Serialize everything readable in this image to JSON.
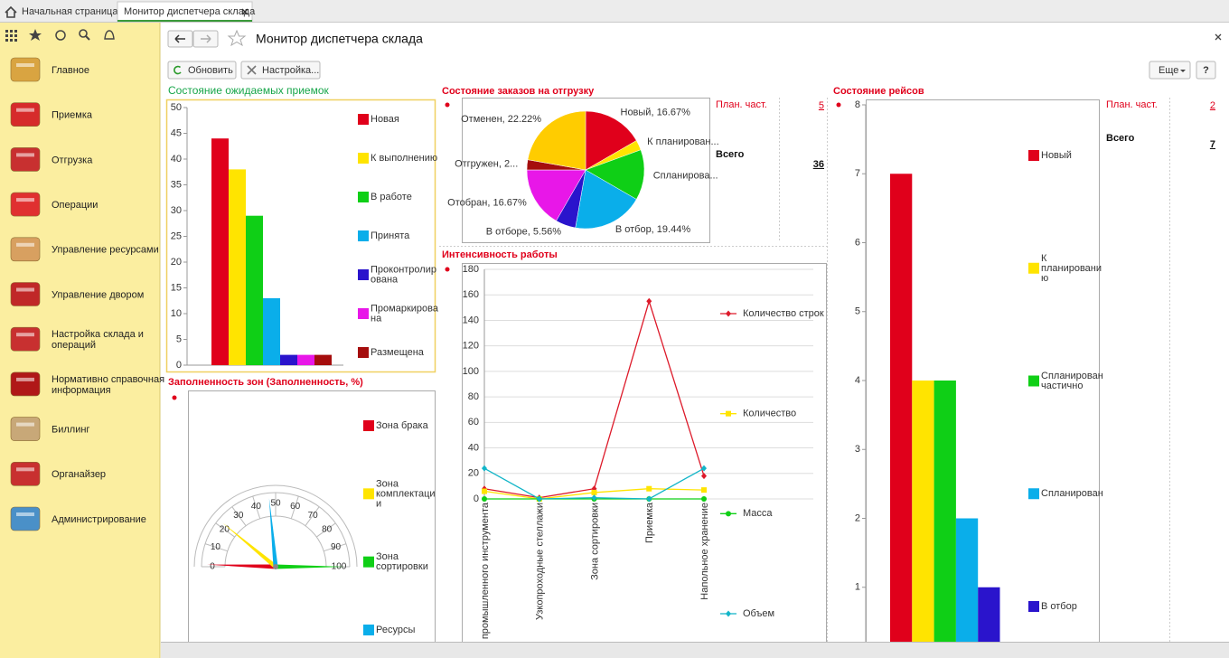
{
  "tabs": [
    "Начальная страница",
    "Монитор диспетчера склада"
  ],
  "nav": [
    "Главное",
    "Приемка",
    "Отгрузка",
    "Операции",
    "Управление ресурсами",
    "Управление двором",
    "Настройка склада и операций",
    "Нормативно справочная информация",
    "Биллинг",
    "Органайзер",
    "Администрирование"
  ],
  "header": {
    "title": "Монитор диспетчера склада"
  },
  "toolbar": {
    "refresh": "Обновить",
    "settings": "Настройка...",
    "more": "Еще",
    "help": "?"
  },
  "summaries": [
    {
      "plan_label": "План. част.",
      "plan": 5,
      "total_label": "Всего",
      "total": 36
    },
    {
      "plan_label": "План. част.",
      "plan": 2,
      "total_label": "Всего",
      "total": 7
    }
  ],
  "chart_data": [
    {
      "type": "bar",
      "title": "Состояние ожидаемых приемок",
      "ylim": [
        0,
        50
      ],
      "yticks": [
        0,
        5,
        10,
        15,
        20,
        25,
        30,
        35,
        40,
        45,
        50
      ],
      "grid": false,
      "series": [
        {
          "name": "Новая",
          "color": "#e0001b",
          "values": [
            44
          ]
        },
        {
          "name": "К выполнению",
          "color": "#ffe400",
          "values": [
            38
          ]
        },
        {
          "name": "В работе",
          "color": "#0fcf16",
          "values": [
            29
          ]
        },
        {
          "name": "Принята",
          "color": "#0aaeea",
          "values": [
            13
          ]
        },
        {
          "name": "Проконтролирована",
          "color": "#2a14cc",
          "values": [
            2
          ]
        },
        {
          "name": "Промаркирована",
          "color": "#e817e8",
          "values": [
            2
          ]
        },
        {
          "name": "Размещена",
          "color": "#a50d0d",
          "values": [
            2
          ]
        }
      ]
    },
    {
      "type": "pie",
      "title": "Состояние заказов на отгрузку",
      "values": [
        16.67,
        2.78,
        13.89,
        19.44,
        5.56,
        16.67,
        2.78,
        22.22
      ],
      "value_labels": [
        "Новый, 16.67%",
        "К планирован...",
        "Спланирова...",
        "В отбор, 19.44%",
        "В отборе, 5.56%",
        "Отобран, 16.67%",
        "Отгружен, 2...",
        "Отменен, 22.22%"
      ],
      "colors": [
        "#e0001b",
        "#ffe400",
        "#0fcf16",
        "#0aaeea",
        "#2a14cc",
        "#e817e8",
        "#a50d0d",
        "#ffcc00"
      ]
    },
    {
      "type": "gauge",
      "title": "Заполненность зон (Заполненность, %)",
      "xlim": [
        0,
        100
      ],
      "xticks": [
        0,
        10,
        20,
        30,
        40,
        50,
        60,
        70,
        80,
        90,
        100
      ],
      "series": [
        {
          "name": "Зона брака",
          "color": "#e0001b",
          "values": [
            1
          ]
        },
        {
          "name": "Зона комплектации",
          "color": "#ffe400",
          "values": [
            22
          ]
        },
        {
          "name": "Зона сортировки",
          "color": "#0fcf16",
          "values": [
            100
          ]
        },
        {
          "name": "Ресурсы",
          "color": "#0aaeea",
          "values": [
            47
          ]
        }
      ]
    },
    {
      "type": "line",
      "title": "Интенсивность работы",
      "ylim": [
        0,
        180
      ],
      "yticks": [
        0,
        20,
        40,
        60,
        80,
        100,
        120,
        140,
        160,
        180
      ],
      "grid": true,
      "categories": [
        "Хранение промышленного инструмента",
        "Узкопроходные стеллажи",
        "Зона сортировки",
        "Приемка",
        "Напольное хранение"
      ],
      "series": [
        {
          "name": "Количество строк",
          "color": "#dd1a2a",
          "values": [
            8,
            1,
            8,
            155,
            18
          ]
        },
        {
          "name": "Количество",
          "color": "#ffe400",
          "values": [
            6,
            0,
            5,
            8,
            7
          ]
        },
        {
          "name": "Масса",
          "color": "#0fcf16",
          "values": [
            0,
            0,
            0,
            0,
            0
          ]
        },
        {
          "name": "Объем",
          "color": "#12b5c8",
          "values": [
            24,
            0,
            1,
            0,
            24
          ]
        }
      ]
    },
    {
      "type": "bar",
      "title": "Состояние рейсов",
      "ylim": [
        0,
        8
      ],
      "yticks": [
        1,
        2,
        3,
        4,
        5,
        6,
        7,
        8
      ],
      "grid": false,
      "series": [
        {
          "name": "Новый",
          "color": "#e0001b",
          "values": [
            7
          ]
        },
        {
          "name": "К планированию",
          "color": "#ffe400",
          "values": [
            4
          ]
        },
        {
          "name": "Спланирован частично",
          "color": "#0fcf16",
          "values": [
            4
          ]
        },
        {
          "name": "Спланирован",
          "color": "#0aaeea",
          "values": [
            2
          ]
        },
        {
          "name": "В отбор",
          "color": "#2a14cc",
          "values": [
            1
          ]
        }
      ]
    }
  ]
}
